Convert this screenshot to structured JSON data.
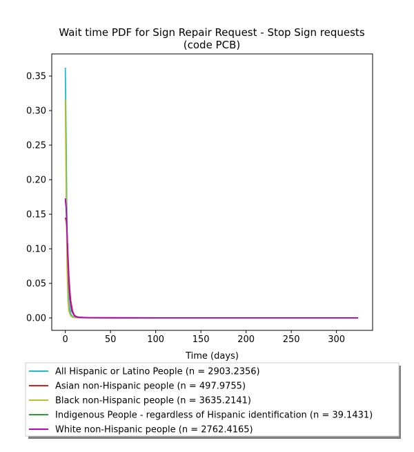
{
  "chart_data": {
    "type": "line",
    "title_line1": "Wait time PDF for Sign Repair Request - Stop Sign  requests",
    "title_line2": "(code PCB)",
    "xlabel": "Time (days)",
    "ylabel": "",
    "xlim": [
      -15,
      340
    ],
    "ylim": [
      -0.018,
      0.382
    ],
    "x_ticks": [
      0,
      50,
      100,
      150,
      200,
      250,
      300
    ],
    "y_ticks": [
      0.0,
      0.05,
      0.1,
      0.15,
      0.2,
      0.25,
      0.3,
      0.35
    ],
    "y_tick_labels": [
      "0.00",
      "0.05",
      "0.10",
      "0.15",
      "0.20",
      "0.25",
      "0.30",
      "0.35"
    ],
    "grid": false,
    "legend_position": "below plot",
    "series": [
      {
        "name": "All Hispanic or Latino People (n = 2903.2356)",
        "color": "#17becf",
        "x": [
          0,
          1,
          2,
          3,
          4,
          6,
          8,
          10,
          15,
          25,
          50,
          100,
          200,
          324
        ],
        "y": [
          0.362,
          0.25,
          0.11,
          0.05,
          0.02,
          0.006,
          0.002,
          0.0008,
          0.0003,
          0.0002,
          0.0001,
          0.0001,
          0.0001,
          0.0001
        ]
      },
      {
        "name": "Asian non-Hispanic people (n = 497.9755)",
        "color": "#e41a1c",
        "x": [
          0,
          1,
          2,
          3,
          4,
          5,
          6,
          8,
          10,
          12,
          15,
          25,
          50,
          100,
          200,
          324
        ],
        "y": [
          0.145,
          0.14,
          0.12,
          0.09,
          0.06,
          0.04,
          0.025,
          0.01,
          0.004,
          0.002,
          0.001,
          0.0004,
          0.0002,
          0.0001,
          0.0001,
          0.0001
        ]
      },
      {
        "name": "Black non-Hispanic people (n = 3635.2141)",
        "color": "#bcbd22",
        "x": [
          0,
          1,
          2,
          3,
          4,
          6,
          8,
          10,
          15,
          25,
          50,
          100,
          200,
          324
        ],
        "y": [
          0.316,
          0.18,
          0.07,
          0.025,
          0.01,
          0.003,
          0.001,
          0.0005,
          0.0003,
          0.0002,
          0.0001,
          0.0001,
          0.0001,
          0.0001
        ]
      },
      {
        "name": "Indigenous People - regardless of Hispanic identification (n = 39.1431)",
        "color": "#2ca02c",
        "x": [
          0,
          1,
          2,
          3,
          4,
          5,
          7,
          10,
          15,
          25,
          50,
          100,
          200,
          324
        ],
        "y": [
          0.17,
          0.16,
          0.12,
          0.08,
          0.05,
          0.03,
          0.01,
          0.003,
          0.001,
          0.0004,
          0.0002,
          0.0001,
          0.0001,
          0.0001
        ]
      },
      {
        "name": "White non-Hispanic people (n = 2762.4165)",
        "color": "#c000c0",
        "x": [
          0,
          1,
          2,
          3,
          4,
          5,
          6,
          8,
          10,
          12,
          15,
          25,
          50,
          100,
          200,
          324
        ],
        "y": [
          0.173,
          0.16,
          0.12,
          0.08,
          0.05,
          0.03,
          0.018,
          0.008,
          0.003,
          0.0015,
          0.0008,
          0.0004,
          0.0002,
          0.0001,
          0.0001,
          0.0001
        ]
      }
    ]
  }
}
